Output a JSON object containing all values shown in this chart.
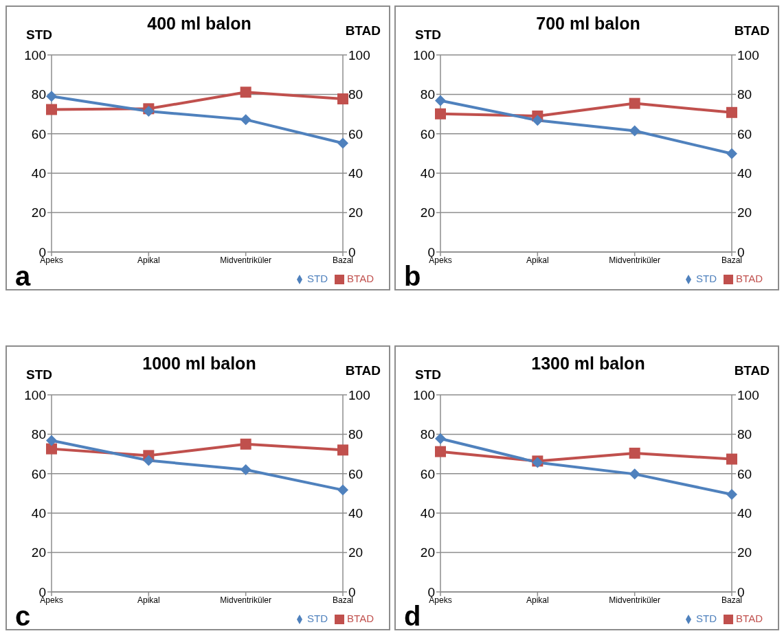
{
  "chart_data": [
    {
      "type": "line",
      "title": "400 ml balon",
      "ylabel": "STD",
      "y2label": "BTAD",
      "annotations": [
        "a"
      ],
      "categories": [
        "Apeks",
        "Apikal",
        "Midventriküler",
        "Bazal"
      ],
      "ylim": [
        0,
        100
      ],
      "yticks": [
        0,
        20,
        40,
        60,
        80,
        100
      ],
      "y2lim": [
        0,
        100
      ],
      "y2ticks": [
        0,
        20,
        40,
        60,
        80,
        100
      ],
      "grid": "y",
      "legend": "bottom right",
      "series": [
        {
          "name": "STD",
          "color": "#4f81bd",
          "marker": "diamond",
          "values": [
            79,
            71.4,
            67.2,
            55.2
          ]
        },
        {
          "name": "BTAD",
          "color": "#c0504d",
          "marker": "square",
          "axis": "y2",
          "values": [
            72.3,
            72.7,
            81.1,
            77.7
          ]
        }
      ]
    },
    {
      "type": "line",
      "title": "700 ml balon",
      "ylabel": "STD",
      "y2label": "BTAD",
      "annotations": [
        "b"
      ],
      "categories": [
        "Apeks",
        "Apikal",
        "Midventriküler",
        "Bazal"
      ],
      "ylim": [
        0,
        100
      ],
      "yticks": [
        0,
        20,
        40,
        60,
        80,
        100
      ],
      "y2lim": [
        0,
        100
      ],
      "y2ticks": [
        0,
        20,
        40,
        60,
        80,
        100
      ],
      "grid": "y",
      "legend": "bottom right",
      "series": [
        {
          "name": "STD",
          "color": "#4f81bd",
          "marker": "diamond",
          "values": [
            76.8,
            66.8,
            61.5,
            49.9
          ]
        },
        {
          "name": "BTAD",
          "color": "#c0504d",
          "marker": "square",
          "axis": "y2",
          "values": [
            70.1,
            69,
            75.4,
            70.8
          ]
        }
      ]
    },
    {
      "type": "line",
      "title": "1000 ml balon",
      "ylabel": "STD",
      "y2label": "BTAD",
      "annotations": [
        "c"
      ],
      "categories": [
        "Apeks",
        "Apikal",
        "Midventriküler",
        "Bazal"
      ],
      "ylim": [
        0,
        100
      ],
      "yticks": [
        0,
        20,
        40,
        60,
        80,
        100
      ],
      "y2lim": [
        0,
        100
      ],
      "y2ticks": [
        0,
        20,
        40,
        60,
        80,
        100
      ],
      "grid": "y",
      "legend": "bottom right",
      "series": [
        {
          "name": "STD",
          "color": "#4f81bd",
          "marker": "diamond",
          "values": [
            76.8,
            66.7,
            62,
            51.7
          ]
        },
        {
          "name": "BTAD",
          "color": "#c0504d",
          "marker": "square",
          "axis": "y2",
          "values": [
            72.6,
            69.2,
            75,
            72
          ]
        }
      ]
    },
    {
      "type": "line",
      "title": "1300 ml balon",
      "ylabel": "STD",
      "y2label": "BTAD",
      "annotations": [
        "d"
      ],
      "categories": [
        "Apeks",
        "Apikal",
        "Midventriküler",
        "Bazal"
      ],
      "ylim": [
        0,
        100
      ],
      "yticks": [
        0,
        20,
        40,
        60,
        80,
        100
      ],
      "y2lim": [
        0,
        100
      ],
      "y2ticks": [
        0,
        20,
        40,
        60,
        80,
        100
      ],
      "grid": "y",
      "legend": "bottom right",
      "series": [
        {
          "name": "STD",
          "color": "#4f81bd",
          "marker": "diamond",
          "values": [
            77.8,
            65.7,
            59.8,
            49.5
          ]
        },
        {
          "name": "BTAD",
          "color": "#c0504d",
          "marker": "square",
          "axis": "y2",
          "values": [
            71.2,
            66.4,
            70.4,
            67.4
          ]
        }
      ]
    }
  ]
}
